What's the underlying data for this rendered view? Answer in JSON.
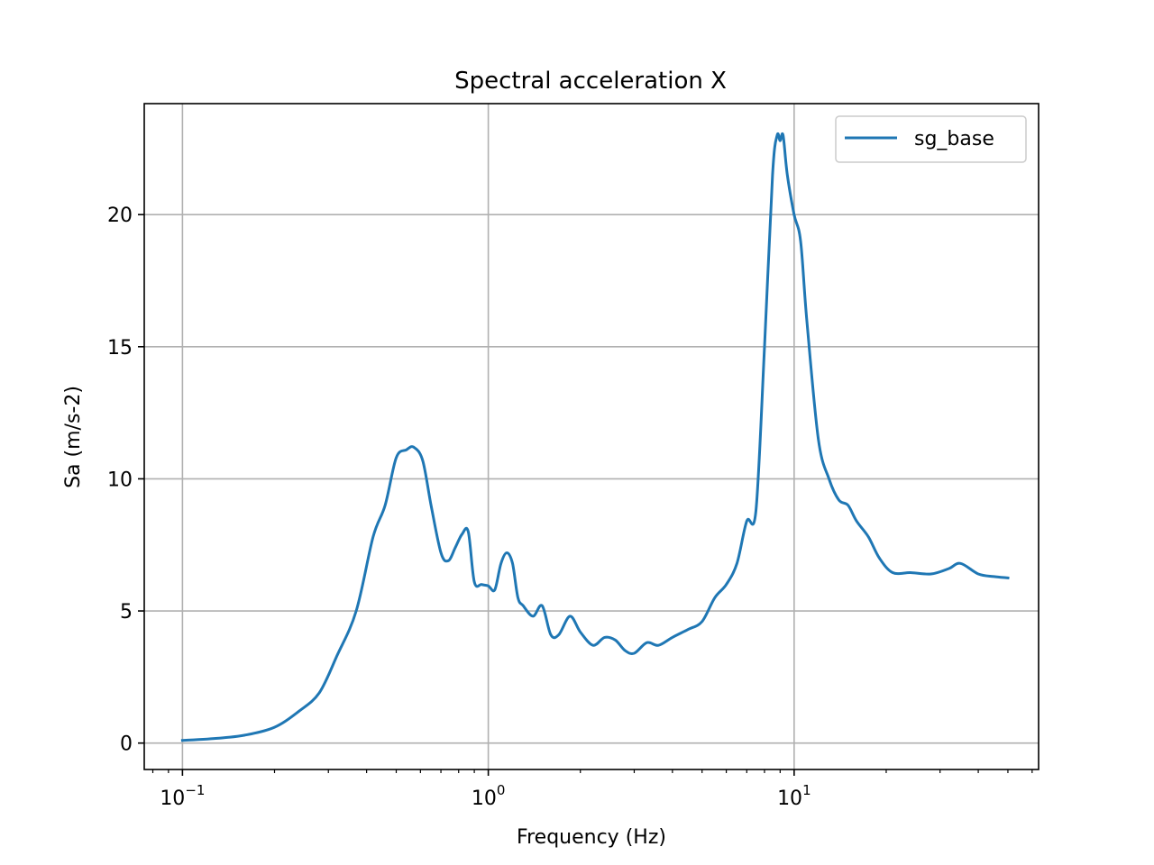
{
  "chart_data": {
    "type": "line",
    "title": "Spectral acceleration X",
    "xlabel": "Frequency (Hz)",
    "ylabel": "Sa (m/s-2)",
    "x_scale": "log",
    "xlim": [
      0.075,
      63
    ],
    "ylim": [
      -1,
      24.2
    ],
    "grid": true,
    "legend_position": "top-right",
    "x_major_ticks": [
      {
        "value": 0.1,
        "base": "10",
        "exp": "−1"
      },
      {
        "value": 1,
        "base": "10",
        "exp": "0"
      },
      {
        "value": 10,
        "base": "10",
        "exp": "1"
      }
    ],
    "y_ticks": [
      {
        "value": 0,
        "label": "0"
      },
      {
        "value": 5,
        "label": "5"
      },
      {
        "value": 10,
        "label": "10"
      },
      {
        "value": 15,
        "label": "15"
      },
      {
        "value": 20,
        "label": "20"
      }
    ],
    "series": [
      {
        "name": "sg_base",
        "color": "#1f77b4",
        "x": [
          0.1,
          0.13,
          0.16,
          0.2,
          0.24,
          0.28,
          0.32,
          0.37,
          0.42,
          0.46,
          0.5,
          0.54,
          0.57,
          0.61,
          0.65,
          0.7,
          0.74,
          0.78,
          0.82,
          0.86,
          0.9,
          0.95,
          1.0,
          1.05,
          1.1,
          1.15,
          1.2,
          1.25,
          1.3,
          1.4,
          1.5,
          1.6,
          1.7,
          1.85,
          2.0,
          2.2,
          2.4,
          2.6,
          2.8,
          3.0,
          3.3,
          3.6,
          4.0,
          4.5,
          5.0,
          5.5,
          6.0,
          6.5,
          7.0,
          7.5,
          8.0,
          8.5,
          8.8,
          9.0,
          9.2,
          9.5,
          10.0,
          10.5,
          11.0,
          12.0,
          13.0,
          14.0,
          15.0,
          16.0,
          17.5,
          19.0,
          21.0,
          24.0,
          28.0,
          32.0,
          35.0,
          40.0,
          45.0,
          50.0
        ],
        "y": [
          0.1,
          0.18,
          0.3,
          0.6,
          1.2,
          1.9,
          3.3,
          5.0,
          7.8,
          9.0,
          10.8,
          11.1,
          11.2,
          10.7,
          9.0,
          7.2,
          6.9,
          7.4,
          7.9,
          8.0,
          6.1,
          6.0,
          5.95,
          5.8,
          6.8,
          7.2,
          6.8,
          5.5,
          5.2,
          4.8,
          5.2,
          4.1,
          4.1,
          4.8,
          4.2,
          3.7,
          4.0,
          3.9,
          3.5,
          3.4,
          3.8,
          3.7,
          4.0,
          4.3,
          4.6,
          5.5,
          6.0,
          6.8,
          8.4,
          8.8,
          15.0,
          21.5,
          23.0,
          22.8,
          23.0,
          21.5,
          20.0,
          19.0,
          16.0,
          11.5,
          10.0,
          9.2,
          9.0,
          8.4,
          7.8,
          7.0,
          6.45,
          6.45,
          6.4,
          6.6,
          6.8,
          6.4,
          6.3,
          6.25
        ]
      }
    ]
  }
}
